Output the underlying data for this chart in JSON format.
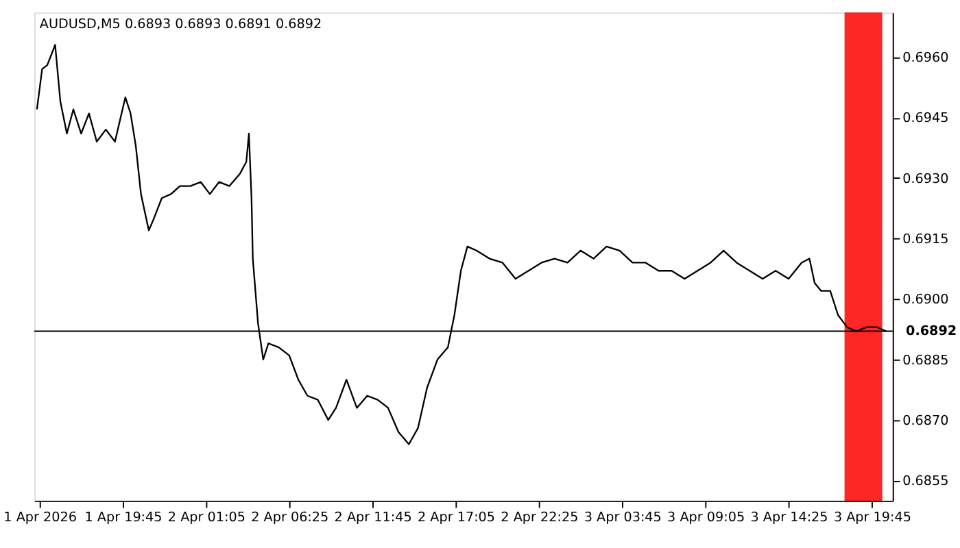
{
  "chart_data": {
    "type": "line",
    "title": "AUDUSD,M5  0.6893 0.6893 0.6891 0.6892",
    "x": [
      "2026-04-01T14:15",
      "2026-04-01T14:35",
      "2026-04-01T14:55",
      "2026-04-01T15:25",
      "2026-04-01T15:45",
      "2026-04-01T16:10",
      "2026-04-01T16:35",
      "2026-04-01T17:05",
      "2026-04-01T17:35",
      "2026-04-01T18:05",
      "2026-04-01T18:40",
      "2026-04-01T19:15",
      "2026-04-01T19:55",
      "2026-04-01T20:15",
      "2026-04-01T20:35",
      "2026-04-01T20:55",
      "2026-04-01T21:25",
      "2026-04-01T21:45",
      "2026-04-01T22:15",
      "2026-04-01T22:50",
      "2026-04-01T23:25",
      "2026-04-02T00:05",
      "2026-04-02T00:45",
      "2026-04-02T01:20",
      "2026-04-02T01:55",
      "2026-04-02T02:35",
      "2026-04-02T03:15",
      "2026-04-02T03:40",
      "2026-04-02T03:50",
      "2026-04-02T04:00",
      "2026-04-02T04:05",
      "2026-04-02T04:25",
      "2026-04-02T04:45",
      "2026-04-02T05:05",
      "2026-04-02T05:45",
      "2026-04-02T06:25",
      "2026-04-02T07:00",
      "2026-04-02T07:35",
      "2026-04-02T08:15",
      "2026-04-02T08:55",
      "2026-04-02T09:25",
      "2026-04-02T10:05",
      "2026-04-02T10:45",
      "2026-04-02T11:25",
      "2026-04-02T12:05",
      "2026-04-02T12:45",
      "2026-04-02T13:25",
      "2026-04-02T14:05",
      "2026-04-02T14:40",
      "2026-04-02T15:15",
      "2026-04-02T15:55",
      "2026-04-02T16:35",
      "2026-04-02T17:00",
      "2026-04-02T17:25",
      "2026-04-02T17:50",
      "2026-04-02T18:25",
      "2026-04-02T19:15",
      "2026-04-02T20:05",
      "2026-04-02T20:55",
      "2026-04-02T21:45",
      "2026-04-02T22:35",
      "2026-04-02T23:25",
      "2026-04-03T00:15",
      "2026-04-03T01:05",
      "2026-04-03T01:55",
      "2026-04-03T02:45",
      "2026-04-03T03:35",
      "2026-04-03T04:25",
      "2026-04-03T05:15",
      "2026-04-03T06:05",
      "2026-04-03T06:55",
      "2026-04-03T07:45",
      "2026-04-03T08:35",
      "2026-04-03T09:25",
      "2026-04-03T10:15",
      "2026-04-03T11:05",
      "2026-04-03T11:55",
      "2026-04-03T12:45",
      "2026-04-03T13:35",
      "2026-04-03T14:25",
      "2026-04-03T15:15",
      "2026-04-03T15:45",
      "2026-04-03T16:05",
      "2026-04-03T16:30",
      "2026-04-03T17:05",
      "2026-04-03T17:35",
      "2026-04-03T18:10",
      "2026-04-03T18:45",
      "2026-04-03T19:25",
      "2026-04-03T20:05",
      "2026-04-03T20:40"
    ],
    "series": [
      {
        "color": "#000000",
        "values": [
          0.6947,
          0.6957,
          0.6958,
          0.6963,
          0.6949,
          0.6941,
          0.6947,
          0.6941,
          0.6946,
          0.6939,
          0.6942,
          0.6939,
          0.695,
          0.6946,
          0.6938,
          0.6926,
          0.6917,
          0.692,
          0.6925,
          0.6926,
          0.6928,
          0.6928,
          0.6929,
          0.6926,
          0.6929,
          0.6928,
          0.6931,
          0.6934,
          0.6941,
          0.6925,
          0.691,
          0.6894,
          0.6885,
          0.6889,
          0.6888,
          0.6886,
          0.688,
          0.6876,
          0.6875,
          0.687,
          0.6873,
          0.688,
          0.6873,
          0.6876,
          0.6875,
          0.6873,
          0.6867,
          0.6864,
          0.6868,
          0.6878,
          0.6885,
          0.6888,
          0.6896,
          0.6907,
          0.6913,
          0.6912,
          0.691,
          0.6909,
          0.6905,
          0.6907,
          0.6909,
          0.691,
          0.6909,
          0.6912,
          0.691,
          0.6913,
          0.6912,
          0.6909,
          0.6909,
          0.6907,
          0.6907,
          0.6905,
          0.6907,
          0.6909,
          0.6912,
          0.6909,
          0.6907,
          0.6905,
          0.6907,
          0.6905,
          0.6909,
          0.691,
          0.6904,
          0.6902,
          0.6902,
          0.6896,
          0.6893,
          0.6892,
          0.6893,
          0.6893,
          0.6892
        ]
      }
    ],
    "xlim": [
      "2026-04-01T14:05",
      "2026-04-03T21:05"
    ],
    "xticks": [
      {
        "value": "2026-04-01T14:25",
        "label": "1 Apr 2026"
      },
      {
        "value": "2026-04-01T19:45",
        "label": "1 Apr 19:45"
      },
      {
        "value": "2026-04-02T01:05",
        "label": "2 Apr 01:05"
      },
      {
        "value": "2026-04-02T06:25",
        "label": "2 Apr 06:25"
      },
      {
        "value": "2026-04-02T11:45",
        "label": "2 Apr 11:45"
      },
      {
        "value": "2026-04-02T17:05",
        "label": "2 Apr 17:05"
      },
      {
        "value": "2026-04-02T22:25",
        "label": "2 Apr 22:25"
      },
      {
        "value": "2026-04-03T03:45",
        "label": "3 Apr 03:45"
      },
      {
        "value": "2026-04-03T09:05",
        "label": "3 Apr 09:05"
      },
      {
        "value": "2026-04-03T14:25",
        "label": "3 Apr 14:25"
      },
      {
        "value": "2026-04-03T19:45",
        "label": "3 Apr 19:45"
      }
    ],
    "ylim": [
      0.685,
      0.6971
    ],
    "yticks": [
      {
        "value": 0.6855,
        "label": "0.6855"
      },
      {
        "value": 0.687,
        "label": "0.6870"
      },
      {
        "value": 0.6885,
        "label": "0.6885"
      },
      {
        "value": 0.69,
        "label": "0.6900"
      },
      {
        "value": 0.6915,
        "label": "0.6915"
      },
      {
        "value": 0.693,
        "label": "0.6930"
      },
      {
        "value": 0.6945,
        "label": "0.6945"
      },
      {
        "value": 0.696,
        "label": "0.6960"
      }
    ],
    "ref_lines": [
      {
        "axis": "y",
        "value": 0.6892,
        "label": "0.6892",
        "color": "#000000"
      }
    ],
    "bands": [
      {
        "axis": "x",
        "from": "2026-04-03T18:00",
        "to": "2026-04-03T20:25",
        "color": "#ff0000"
      }
    ],
    "grid": false,
    "marker": "none",
    "line_style": "solid"
  }
}
